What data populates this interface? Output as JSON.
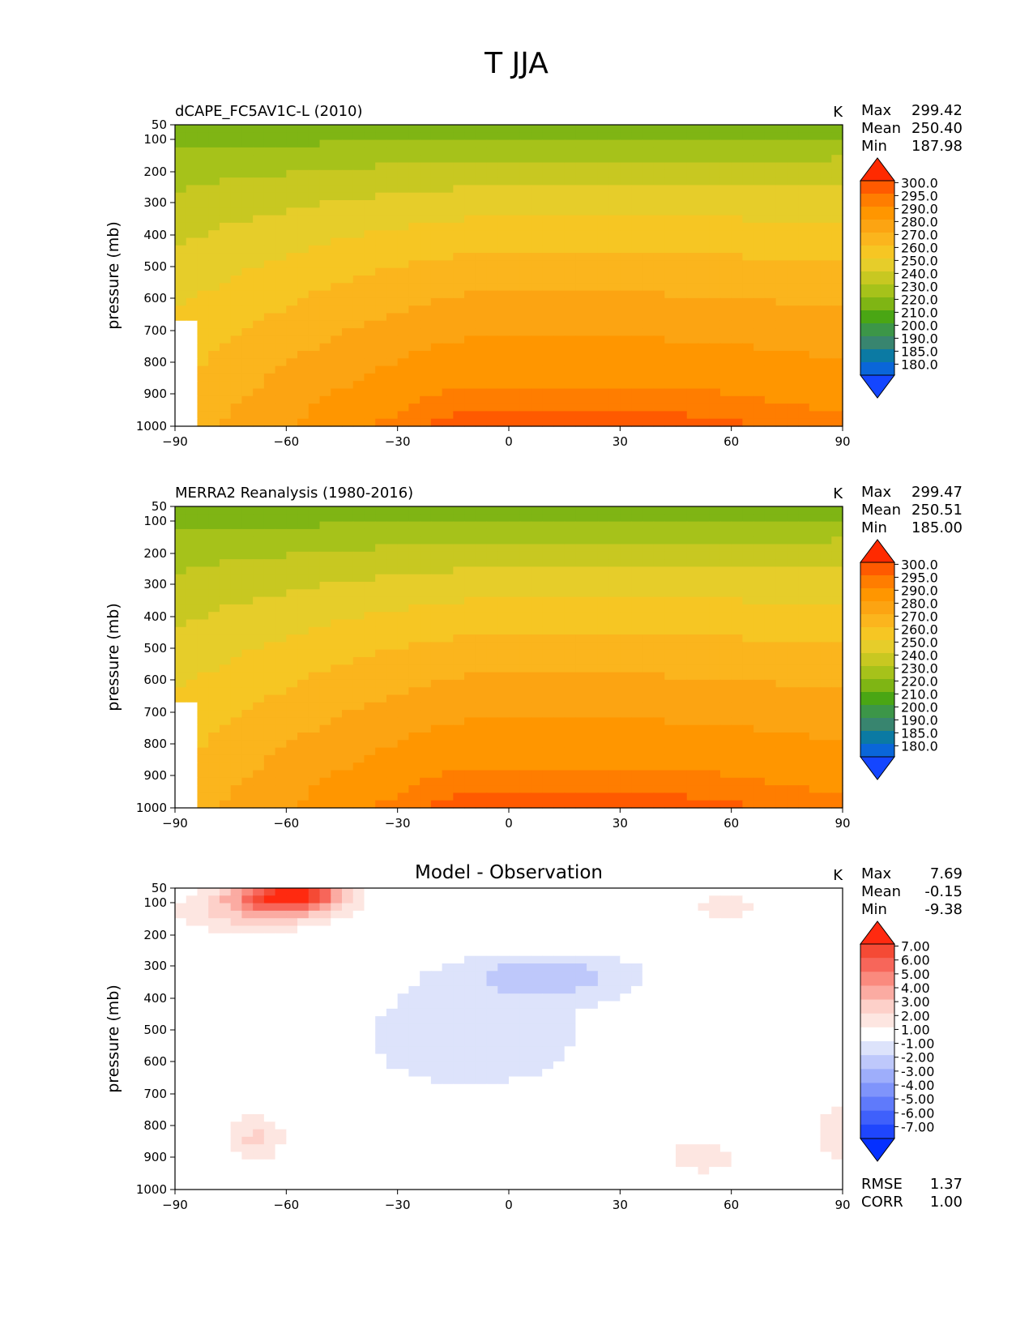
{
  "figure": {
    "title": "T JJA"
  },
  "chart_data": [
    {
      "type": "contour",
      "title": "dCAPE_FC5AV1C-L (2010)",
      "units": "K",
      "xlabel": "",
      "ylabel": "pressure (mb)",
      "xlim": [
        -90,
        90
      ],
      "ylim": [
        1000,
        50
      ],
      "x_ticks": [
        "−90",
        "−60",
        "−30",
        "0",
        "30",
        "60",
        "90"
      ],
      "y_ticks": [
        "50",
        "100",
        "200",
        "300",
        "400",
        "500",
        "600",
        "700",
        "800",
        "900",
        "1000"
      ],
      "stats": [
        {
          "label": "Max",
          "value": "299.42"
        },
        {
          "label": "Mean",
          "value": "250.40"
        },
        {
          "label": "Min",
          "value": "187.98"
        }
      ],
      "colorbar_levels": [
        "300.0",
        "295.0",
        "290.0",
        "280.0",
        "270.0",
        "260.0",
        "250.0",
        "240.0",
        "230.0",
        "220.0",
        "210.0",
        "200.0",
        "190.0",
        "185.0",
        "180.0"
      ],
      "colorbar_colors": [
        "#ff2a00",
        "#ff5a00",
        "#ff7d00",
        "#ff9600",
        "#fca412",
        "#fbb51d",
        "#f6c623",
        "#e6cd2a",
        "#c8c821",
        "#a6c21a",
        "#7fb514",
        "#4aa614",
        "#3c9648",
        "#38856f",
        "#0b7aa3",
        "#0a66d9",
        "#1446ff"
      ]
    },
    {
      "type": "contour",
      "title": "MERRA2 Reanalysis (1980-2016)",
      "units": "K",
      "xlabel": "",
      "ylabel": "pressure (mb)",
      "xlim": [
        -90,
        90
      ],
      "ylim": [
        1000,
        50
      ],
      "x_ticks": [
        "−90",
        "−60",
        "−30",
        "0",
        "30",
        "60",
        "90"
      ],
      "y_ticks": [
        "50",
        "100",
        "200",
        "300",
        "400",
        "500",
        "600",
        "700",
        "800",
        "900",
        "1000"
      ],
      "stats": [
        {
          "label": "Max",
          "value": "299.47"
        },
        {
          "label": "Mean",
          "value": "250.51"
        },
        {
          "label": "Min",
          "value": "185.00"
        }
      ],
      "colorbar_levels": [
        "300.0",
        "295.0",
        "290.0",
        "280.0",
        "270.0",
        "260.0",
        "250.0",
        "240.0",
        "230.0",
        "220.0",
        "210.0",
        "200.0",
        "190.0",
        "185.0",
        "180.0"
      ],
      "colorbar_colors": [
        "#ff2a00",
        "#ff5a00",
        "#ff7d00",
        "#ff9600",
        "#fca412",
        "#fbb51d",
        "#f6c623",
        "#e6cd2a",
        "#c8c821",
        "#a6c21a",
        "#7fb514",
        "#4aa614",
        "#3c9648",
        "#38856f",
        "#0b7aa3",
        "#0a66d9",
        "#1446ff"
      ]
    },
    {
      "type": "contour",
      "title": "Model - Observation",
      "units": "K",
      "xlabel": "",
      "ylabel": "pressure (mb)",
      "xlim": [
        -90,
        90
      ],
      "ylim": [
        1000,
        50
      ],
      "x_ticks": [
        "−90",
        "−60",
        "−30",
        "0",
        "30",
        "60",
        "90"
      ],
      "y_ticks": [
        "50",
        "100",
        "200",
        "300",
        "400",
        "500",
        "600",
        "700",
        "800",
        "900",
        "1000"
      ],
      "stats": [
        {
          "label": "Max",
          "value": "7.69"
        },
        {
          "label": "Mean",
          "value": "-0.15"
        },
        {
          "label": "Min",
          "value": "-9.38"
        }
      ],
      "extra_stats": [
        {
          "label": "RMSE",
          "value": "1.37"
        },
        {
          "label": "CORR",
          "value": "1.00"
        }
      ],
      "colorbar_levels": [
        "7.00",
        "6.00",
        "5.00",
        "4.00",
        "3.00",
        "2.00",
        "1.00",
        "-1.00",
        "-2.00",
        "-3.00",
        "-4.00",
        "-5.00",
        "-6.00",
        "-7.00"
      ],
      "colorbar_colors": [
        "#ff2a10",
        "#f54a35",
        "#f7665a",
        "#fa8a7e",
        "#fbaba2",
        "#fdd0c9",
        "#fde6e1",
        "#ffffff",
        "#dde3fb",
        "#bec8fb",
        "#9eaefb",
        "#7f94fb",
        "#5f7afb",
        "#3f60fb",
        "#1f46fd",
        "#0530ff"
      ]
    }
  ]
}
